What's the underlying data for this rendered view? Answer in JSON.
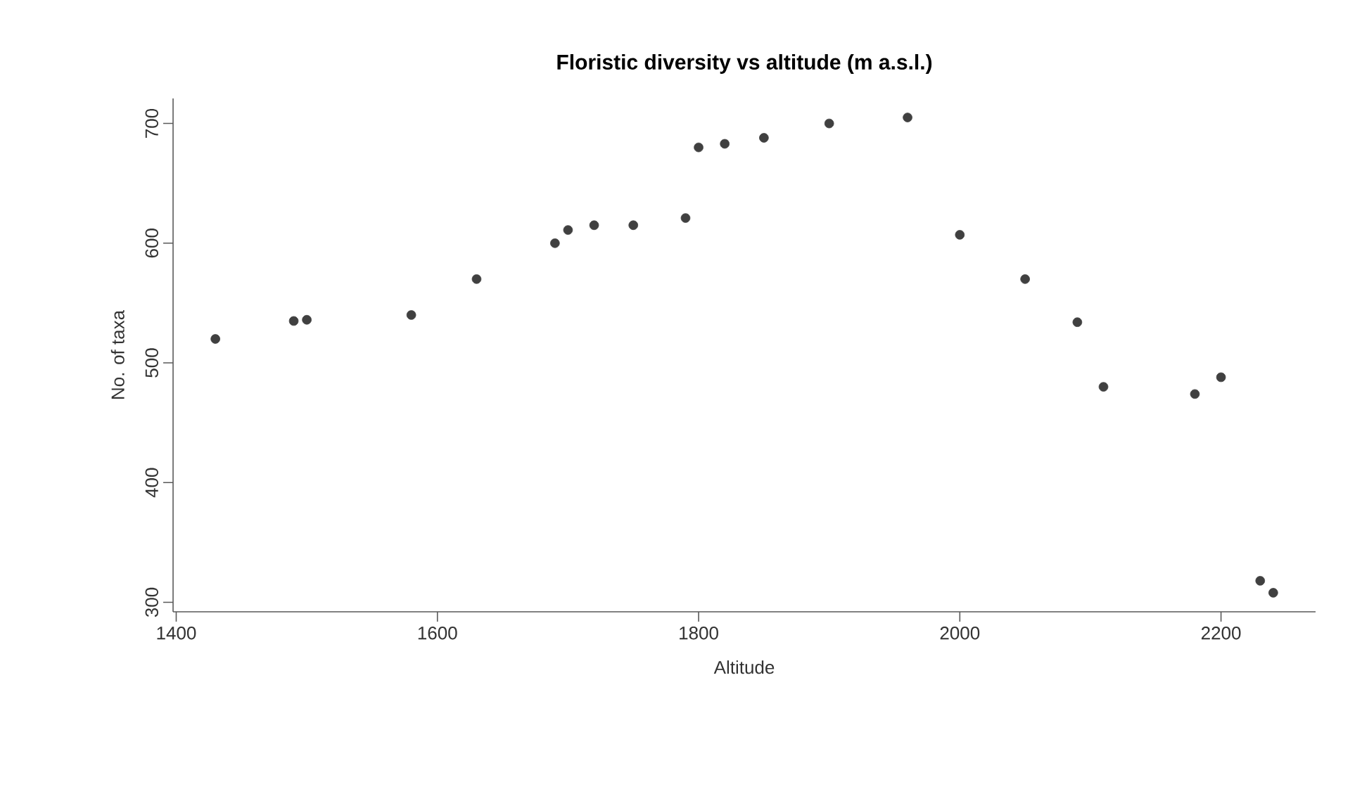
{
  "chart_data": {
    "type": "scatter",
    "title": "Floristic diversity vs altitude (m a.s.l.)",
    "xlabel": "Altitude",
    "ylabel": "No. of taxa",
    "x": [
      1430,
      1490,
      1500,
      1580,
      1630,
      1690,
      1700,
      1720,
      1750,
      1790,
      1800,
      1820,
      1850,
      1900,
      1960,
      2000,
      2050,
      2090,
      2110,
      2180,
      2200,
      2230,
      2240
    ],
    "values": [
      520,
      535,
      536,
      540,
      570,
      600,
      611,
      615,
      615,
      621,
      680,
      683,
      688,
      700,
      705,
      607,
      570,
      534,
      480,
      474,
      488,
      318,
      308
    ],
    "color": "#404040",
    "marker": "circle",
    "xlim": [
      1397.6,
      2272.4
    ],
    "ylim": [
      292.1,
      720.9
    ],
    "xticks": [
      1400,
      1600,
      1800,
      2000,
      2200
    ],
    "yticks": [
      300,
      400,
      500,
      600,
      700
    ]
  }
}
